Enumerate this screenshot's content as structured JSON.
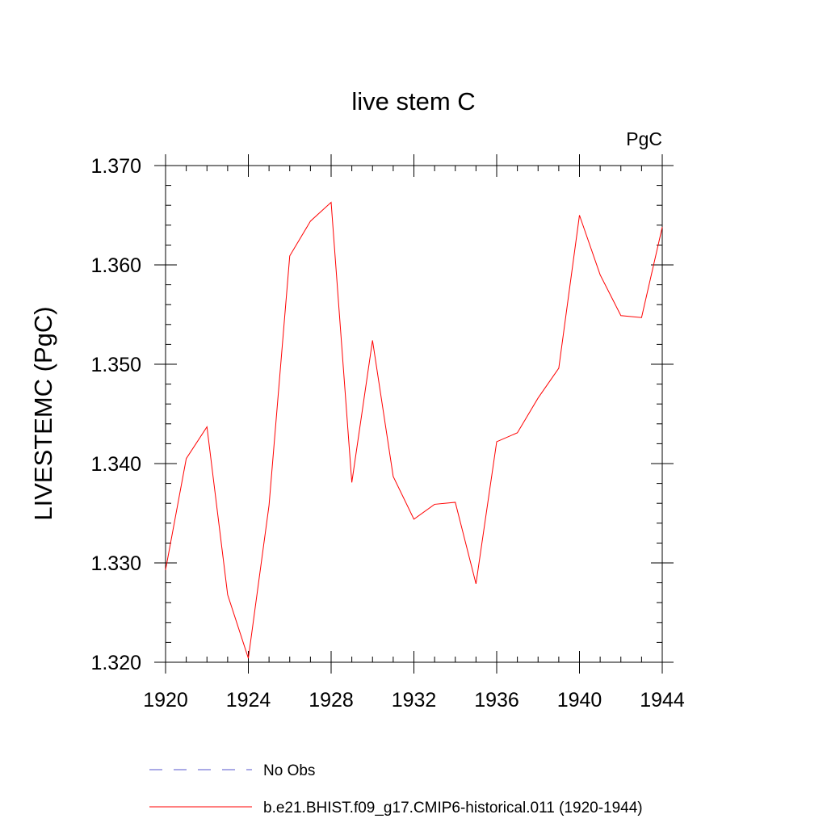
{
  "chart_data": {
    "type": "line",
    "title": "live stem C",
    "units_label": "PgC",
    "ylabel": "LIVESTEMC  (PgC)",
    "xlabel": "",
    "xlim": [
      1920,
      1944
    ],
    "ylim": [
      1.32,
      1.37
    ],
    "x_ticks": [
      "1920",
      "1924",
      "1928",
      "1932",
      "1936",
      "1940",
      "1944"
    ],
    "y_ticks": [
      "1.320",
      "1.330",
      "1.340",
      "1.350",
      "1.360",
      "1.370"
    ],
    "grid": false,
    "legend_position": "bottom",
    "series": [
      {
        "name": "No Obs",
        "color": "#5555cc",
        "dash": "dashed",
        "x": [],
        "values": []
      },
      {
        "name": "b.e21.BHIST.f09_g17.CMIP6-historical.011 (1920-1944)",
        "color": "#ff0000",
        "dash": "solid",
        "x": [
          1920,
          1921,
          1922,
          1923,
          1924,
          1925,
          1926,
          1927,
          1928,
          1929,
          1930,
          1931,
          1932,
          1933,
          1934,
          1935,
          1936,
          1937,
          1938,
          1939,
          1940,
          1941,
          1942,
          1943,
          1944
        ],
        "values": [
          1.3293,
          1.3405,
          1.3437,
          1.3268,
          1.3204,
          1.3358,
          1.3609,
          1.3644,
          1.3663,
          1.3381,
          1.3524,
          1.3387,
          1.3344,
          1.3359,
          1.3361,
          1.3279,
          1.3422,
          1.3431,
          1.3466,
          1.3496,
          1.365,
          1.359,
          1.3549,
          1.3547,
          1.3638
        ]
      }
    ]
  }
}
